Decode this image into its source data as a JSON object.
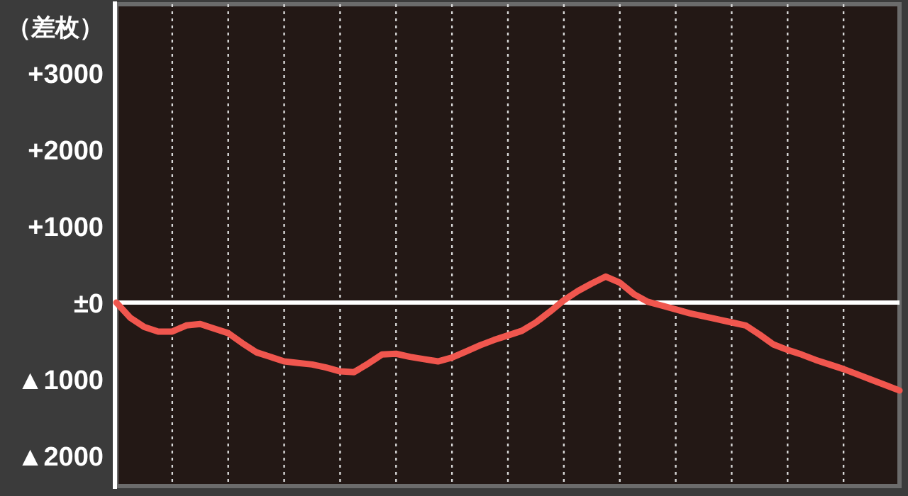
{
  "chart_data": {
    "type": "line",
    "ylabel": "（差枚）",
    "categories": [
      null,
      null,
      null,
      null,
      null,
      null,
      null,
      null,
      null,
      null,
      null,
      null,
      null,
      null,
      null,
      null,
      null,
      null,
      null,
      null,
      null,
      null,
      null,
      null,
      null,
      null,
      null,
      null,
      null,
      null,
      null,
      null,
      null,
      null,
      null,
      null,
      null,
      null,
      null,
      null,
      null,
      null,
      null,
      null,
      null,
      null,
      null,
      null,
      null,
      null,
      null,
      null,
      null,
      null,
      null,
      null,
      null
    ],
    "series": [
      {
        "color": "#f0564e",
        "values": [
          0,
          -200,
          -320,
          -380,
          -380,
          -300,
          -280,
          -340,
          -400,
          -530,
          -650,
          -710,
          -770,
          -790,
          -810,
          -850,
          -900,
          -910,
          -800,
          -680,
          -670,
          -710,
          -740,
          -770,
          -720,
          -640,
          -560,
          -490,
          -430,
          -370,
          -260,
          -120,
          30,
          150,
          250,
          340,
          260,
          110,
          10,
          -40,
          -90,
          -140,
          -180,
          -220,
          -260,
          -300,
          -420,
          -550,
          -620,
          -680,
          -750,
          -810,
          -870,
          -940,
          -1010,
          -1080,
          -1150
        ]
      }
    ],
    "ylim": [
      -2400,
      3900
    ],
    "yticks": [
      {
        "value": 3000,
        "label": "+3000"
      },
      {
        "value": 2000,
        "label": "+2000"
      },
      {
        "value": 1000,
        "label": "+1000"
      },
      {
        "value": 0,
        "label": "±0"
      },
      {
        "value": -1000,
        "label": "▲1000"
      },
      {
        "value": -2000,
        "label": "▲2000"
      }
    ],
    "grid": "x",
    "line_style": "solid",
    "marker": "none",
    "ref_lines": [
      {
        "axis": "y",
        "value": 0,
        "color": "#ffffff"
      }
    ]
  }
}
